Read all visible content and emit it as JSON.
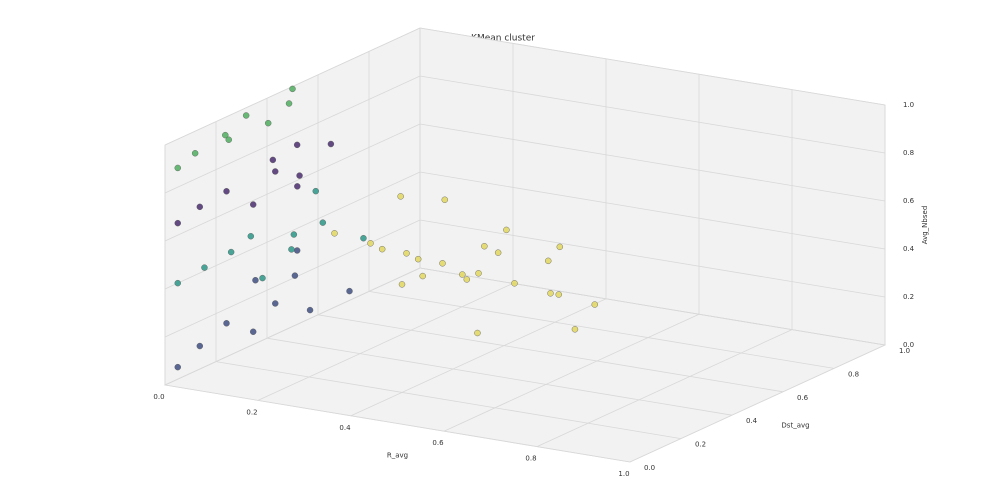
{
  "chart_data": {
    "type": "scatter3d",
    "title": "KMean cluster",
    "xlabel": "R_avg",
    "ylabel": "Dst_avg",
    "zlabel": "Avg_Nbsed",
    "xlim": [
      0,
      1
    ],
    "ylim": [
      0,
      1
    ],
    "zlim": [
      0,
      1
    ],
    "xticks": [
      {
        "value": 0,
        "label": "0.0"
      },
      {
        "value": 0.2,
        "label": "0.2"
      },
      {
        "value": 0.4,
        "label": "0.4"
      },
      {
        "value": 0.6,
        "label": "0.6"
      },
      {
        "value": 0.8,
        "label": "0.8"
      },
      {
        "value": 1,
        "label": "1.0"
      }
    ],
    "yticks": [
      {
        "value": 0,
        "label": "0.0"
      },
      {
        "value": 0.2,
        "label": "0.2"
      },
      {
        "value": 0.4,
        "label": "0.4"
      },
      {
        "value": 0.6,
        "label": "0.6"
      },
      {
        "value": 0.8,
        "label": "0.8"
      },
      {
        "value": 1,
        "label": "1.0"
      }
    ],
    "zticks": [
      {
        "value": 0,
        "label": "0.0"
      },
      {
        "value": 0.2,
        "label": "0.2"
      },
      {
        "value": 0.4,
        "label": "0.4"
      },
      {
        "value": 0.6,
        "label": "0.6"
      },
      {
        "value": 0.8,
        "label": "0.8"
      },
      {
        "value": 1,
        "label": "1.0"
      }
    ],
    "grid": true,
    "series": [
      {
        "color": "#3f4f82",
        "x": [
          0.0,
          0.02,
          0.05,
          0.08,
          0.1,
          0.03,
          0.12,
          0.06,
          0.15,
          0.01
        ],
        "y": [
          0.05,
          0.1,
          0.15,
          0.2,
          0.25,
          0.3,
          0.35,
          0.4,
          0.45,
          0.5
        ],
        "z": [
          0.05,
          0.12,
          0.2,
          0.15,
          0.25,
          0.3,
          0.18,
          0.28,
          0.22,
          0.32
        ]
      },
      {
        "color": "#2b9688",
        "x": [
          0.0,
          0.03,
          0.06,
          0.1,
          0.14,
          0.02,
          0.08,
          0.12,
          0.18,
          0.05
        ],
        "y": [
          0.05,
          0.1,
          0.15,
          0.2,
          0.25,
          0.3,
          0.35,
          0.4,
          0.45,
          0.5
        ],
        "z": [
          0.4,
          0.45,
          0.5,
          0.38,
          0.55,
          0.48,
          0.42,
          0.52,
          0.45,
          0.58
        ]
      },
      {
        "color": "#4a2d6e",
        "x": [
          0.0,
          0.02,
          0.05,
          0.08,
          0.1,
          0.12,
          0.04,
          0.07,
          0.11,
          0.01
        ],
        "y": [
          0.05,
          0.1,
          0.15,
          0.2,
          0.25,
          0.3,
          0.35,
          0.4,
          0.45,
          0.5
        ],
        "z": [
          0.65,
          0.7,
          0.75,
          0.68,
          0.8,
          0.72,
          0.78,
          0.7,
          0.82,
          0.76
        ]
      },
      {
        "color": "#4fae5e",
        "x": [
          0.0,
          0.01,
          0.02,
          0.0,
          0.01,
          0.03,
          0.02,
          0.0
        ],
        "y": [
          0.05,
          0.1,
          0.2,
          0.25,
          0.3,
          0.35,
          0.45,
          0.5
        ],
        "z": [
          0.88,
          0.92,
          0.95,
          0.9,
          0.98,
          0.93,
          0.96,
          0.99
        ]
      },
      {
        "color": "#e3d75e",
        "x": [
          0.2,
          0.25,
          0.3,
          0.35,
          0.4,
          0.45,
          0.5,
          0.55,
          0.6,
          0.3,
          0.38,
          0.42,
          0.28,
          0.48,
          0.52,
          0.33,
          0.36,
          0.44,
          0.58,
          0.65,
          0.26,
          0.4,
          0.46,
          0.32
        ],
        "y": [
          0.3,
          0.35,
          0.4,
          0.45,
          0.5,
          0.55,
          0.6,
          0.5,
          0.45,
          0.55,
          0.3,
          0.4,
          0.5,
          0.35,
          0.6,
          0.25,
          0.65,
          0.45,
          0.55,
          0.5,
          0.45,
          0.2,
          0.5,
          0.6
        ],
        "z": [
          0.55,
          0.5,
          0.45,
          0.4,
          0.35,
          0.3,
          0.25,
          0.45,
          0.35,
          0.6,
          0.5,
          0.4,
          0.3,
          0.2,
          0.45,
          0.55,
          0.35,
          0.5,
          0.15,
          0.3,
          0.65,
          0.45,
          0.55,
          0.25
        ]
      }
    ]
  }
}
